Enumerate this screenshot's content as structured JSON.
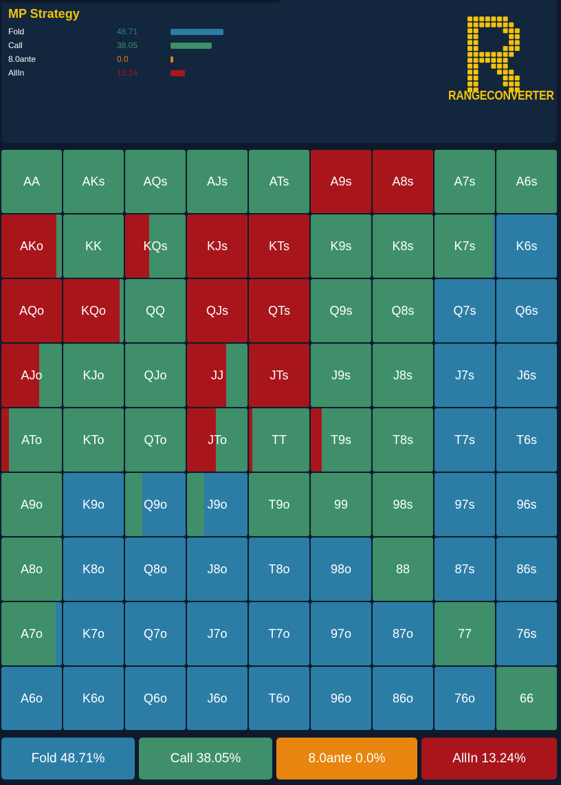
{
  "header": {
    "title": "MP Strategy",
    "legend": [
      {
        "name": "Fold",
        "value": "48.71",
        "pct": 48.71,
        "color": "#2b7da6"
      },
      {
        "name": "Call",
        "value": "38.05",
        "pct": 38.05,
        "color": "#3e8f6a"
      },
      {
        "name": "8.0ante",
        "value": "0.0",
        "pct": 0.0,
        "color": "#e8850e"
      },
      {
        "name": "AllIn",
        "value": "13.24",
        "pct": 13.24,
        "color": "#a8161b"
      }
    ],
    "logo_text": "RANGECONVERTER"
  },
  "colors": {
    "fold": "#2b7da6",
    "call": "#3e8f6a",
    "ante": "#e8850e",
    "allin": "#a8161b"
  },
  "grid": [
    [
      {
        "hand": "AA",
        "mix": [
          [
            "call",
            1
          ]
        ]
      },
      {
        "hand": "AKs",
        "mix": [
          [
            "call",
            1
          ]
        ]
      },
      {
        "hand": "AQs",
        "mix": [
          [
            "call",
            1
          ]
        ]
      },
      {
        "hand": "AJs",
        "mix": [
          [
            "call",
            1
          ]
        ]
      },
      {
        "hand": "ATs",
        "mix": [
          [
            "call",
            1
          ]
        ]
      },
      {
        "hand": "A9s",
        "mix": [
          [
            "allin",
            1
          ]
        ]
      },
      {
        "hand": "A8s",
        "mix": [
          [
            "allin",
            1
          ]
        ]
      },
      {
        "hand": "A7s",
        "mix": [
          [
            "call",
            1
          ]
        ]
      },
      {
        "hand": "A6s",
        "mix": [
          [
            "call",
            1
          ]
        ]
      }
    ],
    [
      {
        "hand": "AKo",
        "mix": [
          [
            "allin",
            0.91
          ],
          [
            "call",
            0.09
          ]
        ]
      },
      {
        "hand": "KK",
        "mix": [
          [
            "call",
            1
          ]
        ]
      },
      {
        "hand": "KQs",
        "mix": [
          [
            "allin",
            0.4
          ],
          [
            "call",
            0.6
          ]
        ]
      },
      {
        "hand": "KJs",
        "mix": [
          [
            "allin",
            1
          ]
        ]
      },
      {
        "hand": "KTs",
        "mix": [
          [
            "allin",
            1
          ]
        ]
      },
      {
        "hand": "K9s",
        "mix": [
          [
            "call",
            1
          ]
        ]
      },
      {
        "hand": "K8s",
        "mix": [
          [
            "call",
            1
          ]
        ]
      },
      {
        "hand": "K7s",
        "mix": [
          [
            "call",
            0.97
          ],
          [
            "fold",
            0.03
          ]
        ]
      },
      {
        "hand": "K6s",
        "mix": [
          [
            "fold",
            1
          ]
        ]
      }
    ],
    [
      {
        "hand": "AQo",
        "mix": [
          [
            "allin",
            1
          ]
        ]
      },
      {
        "hand": "KQo",
        "mix": [
          [
            "allin",
            0.93
          ],
          [
            "call",
            0.07
          ]
        ]
      },
      {
        "hand": "QQ",
        "mix": [
          [
            "call",
            1
          ]
        ]
      },
      {
        "hand": "QJs",
        "mix": [
          [
            "allin",
            1
          ]
        ]
      },
      {
        "hand": "QTs",
        "mix": [
          [
            "allin",
            1
          ]
        ]
      },
      {
        "hand": "Q9s",
        "mix": [
          [
            "call",
            1
          ]
        ]
      },
      {
        "hand": "Q8s",
        "mix": [
          [
            "call",
            1
          ]
        ]
      },
      {
        "hand": "Q7s",
        "mix": [
          [
            "fold",
            1
          ]
        ]
      },
      {
        "hand": "Q6s",
        "mix": [
          [
            "fold",
            1
          ]
        ]
      }
    ],
    [
      {
        "hand": "AJo",
        "mix": [
          [
            "allin",
            0.63
          ],
          [
            "call",
            0.37
          ]
        ]
      },
      {
        "hand": "KJo",
        "mix": [
          [
            "call",
            1
          ]
        ]
      },
      {
        "hand": "QJo",
        "mix": [
          [
            "call",
            1
          ]
        ]
      },
      {
        "hand": "JJ",
        "mix": [
          [
            "allin",
            0.65
          ],
          [
            "call",
            0.35
          ]
        ]
      },
      {
        "hand": "JTs",
        "mix": [
          [
            "allin",
            1
          ]
        ]
      },
      {
        "hand": "J9s",
        "mix": [
          [
            "call",
            1
          ]
        ]
      },
      {
        "hand": "J8s",
        "mix": [
          [
            "call",
            1
          ]
        ]
      },
      {
        "hand": "J7s",
        "mix": [
          [
            "fold",
            1
          ]
        ]
      },
      {
        "hand": "J6s",
        "mix": [
          [
            "fold",
            1
          ]
        ]
      }
    ],
    [
      {
        "hand": "ATo",
        "mix": [
          [
            "allin",
            0.13
          ],
          [
            "call",
            0.87
          ]
        ]
      },
      {
        "hand": "KTo",
        "mix": [
          [
            "call",
            1
          ]
        ]
      },
      {
        "hand": "QTo",
        "mix": [
          [
            "call",
            1
          ]
        ]
      },
      {
        "hand": "JTo",
        "mix": [
          [
            "allin",
            0.48
          ],
          [
            "call",
            0.52
          ]
        ]
      },
      {
        "hand": "TT",
        "mix": [
          [
            "allin",
            0.06
          ],
          [
            "call",
            0.94
          ]
        ]
      },
      {
        "hand": "T9s",
        "mix": [
          [
            "allin",
            0.18
          ],
          [
            "call",
            0.82
          ]
        ]
      },
      {
        "hand": "T8s",
        "mix": [
          [
            "call",
            1
          ]
        ]
      },
      {
        "hand": "T7s",
        "mix": [
          [
            "fold",
            1
          ]
        ]
      },
      {
        "hand": "T6s",
        "mix": [
          [
            "fold",
            1
          ]
        ]
      }
    ],
    [
      {
        "hand": "A9o",
        "mix": [
          [
            "call",
            1
          ]
        ]
      },
      {
        "hand": "K9o",
        "mix": [
          [
            "fold",
            1
          ]
        ]
      },
      {
        "hand": "Q9o",
        "mix": [
          [
            "call",
            0.28
          ],
          [
            "fold",
            0.72
          ]
        ]
      },
      {
        "hand": "J9o",
        "mix": [
          [
            "call",
            0.28
          ],
          [
            "fold",
            0.72
          ]
        ]
      },
      {
        "hand": "T9o",
        "mix": [
          [
            "call",
            1
          ]
        ]
      },
      {
        "hand": "99",
        "mix": [
          [
            "call",
            1
          ]
        ]
      },
      {
        "hand": "98s",
        "mix": [
          [
            "call",
            1
          ]
        ]
      },
      {
        "hand": "97s",
        "mix": [
          [
            "fold",
            1
          ]
        ]
      },
      {
        "hand": "96s",
        "mix": [
          [
            "fold",
            1
          ]
        ]
      }
    ],
    [
      {
        "hand": "A8o",
        "mix": [
          [
            "call",
            1
          ]
        ]
      },
      {
        "hand": "K8o",
        "mix": [
          [
            "fold",
            1
          ]
        ]
      },
      {
        "hand": "Q8o",
        "mix": [
          [
            "fold",
            1
          ]
        ]
      },
      {
        "hand": "J8o",
        "mix": [
          [
            "fold",
            1
          ]
        ]
      },
      {
        "hand": "T8o",
        "mix": [
          [
            "fold",
            1
          ]
        ]
      },
      {
        "hand": "98o",
        "mix": [
          [
            "fold",
            1
          ]
        ]
      },
      {
        "hand": "88",
        "mix": [
          [
            "call",
            1
          ]
        ]
      },
      {
        "hand": "87s",
        "mix": [
          [
            "fold",
            1
          ]
        ]
      },
      {
        "hand": "86s",
        "mix": [
          [
            "fold",
            1
          ]
        ]
      }
    ],
    [
      {
        "hand": "A7o",
        "mix": [
          [
            "call",
            0.9
          ],
          [
            "fold",
            0.1
          ]
        ]
      },
      {
        "hand": "K7o",
        "mix": [
          [
            "fold",
            1
          ]
        ]
      },
      {
        "hand": "Q7o",
        "mix": [
          [
            "fold",
            1
          ]
        ]
      },
      {
        "hand": "J7o",
        "mix": [
          [
            "fold",
            1
          ]
        ]
      },
      {
        "hand": "T7o",
        "mix": [
          [
            "fold",
            1
          ]
        ]
      },
      {
        "hand": "97o",
        "mix": [
          [
            "fold",
            1
          ]
        ]
      },
      {
        "hand": "87o",
        "mix": [
          [
            "fold",
            1
          ]
        ]
      },
      {
        "hand": "77",
        "mix": [
          [
            "call",
            1
          ]
        ]
      },
      {
        "hand": "76s",
        "mix": [
          [
            "fold",
            1
          ]
        ]
      }
    ],
    [
      {
        "hand": "A6o",
        "mix": [
          [
            "fold",
            1
          ]
        ]
      },
      {
        "hand": "K6o",
        "mix": [
          [
            "fold",
            1
          ]
        ]
      },
      {
        "hand": "Q6o",
        "mix": [
          [
            "fold",
            1
          ]
        ]
      },
      {
        "hand": "J6o",
        "mix": [
          [
            "fold",
            1
          ]
        ]
      },
      {
        "hand": "T6o",
        "mix": [
          [
            "fold",
            1
          ]
        ]
      },
      {
        "hand": "96o",
        "mix": [
          [
            "fold",
            1
          ]
        ]
      },
      {
        "hand": "86o",
        "mix": [
          [
            "fold",
            1
          ]
        ]
      },
      {
        "hand": "76o",
        "mix": [
          [
            "fold",
            1
          ]
        ]
      },
      {
        "hand": "66",
        "mix": [
          [
            "call",
            1
          ]
        ]
      }
    ]
  ],
  "summary": [
    {
      "label": "Fold 48.71%",
      "color": "#2b7da6"
    },
    {
      "label": "Call 38.05%",
      "color": "#3e8f6a"
    },
    {
      "label": "8.0ante 0.0%",
      "color": "#e8850e"
    },
    {
      "label": "AllIn 13.24%",
      "color": "#a8161b"
    }
  ]
}
